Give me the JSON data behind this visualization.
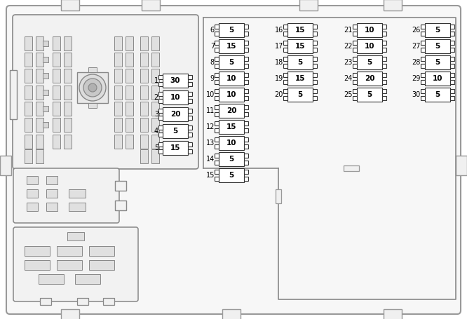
{
  "bg_color": "#ffffff",
  "board_fill": "#f0f0f0",
  "board_edge": "#888888",
  "box_fill": "#e8e8e8",
  "box_edge": "#666666",
  "fuse_fill": "#ffffff",
  "fuse_fill_gray": "#e0e0e0",
  "fuse_border": "#333333",
  "text_color": "#000000",
  "slot_fill": "#e0e0e0",
  "slot_edge": "#666666",
  "col1_fuses": [
    {
      "num": 1,
      "val": "30"
    },
    {
      "num": 2,
      "val": "10"
    },
    {
      "num": 3,
      "val": "20"
    },
    {
      "num": 4,
      "val": "5"
    },
    {
      "num": 5,
      "val": "15"
    }
  ],
  "col2_fuses": [
    {
      "num": 6,
      "val": "5"
    },
    {
      "num": 7,
      "val": "15"
    },
    {
      "num": 8,
      "val": "5"
    },
    {
      "num": 9,
      "val": "10"
    },
    {
      "num": 10,
      "val": "10"
    },
    {
      "num": 11,
      "val": "20"
    },
    {
      "num": 12,
      "val": "15"
    },
    {
      "num": 13,
      "val": "10"
    },
    {
      "num": 14,
      "val": "5"
    },
    {
      "num": 15,
      "val": "5"
    }
  ],
  "col3_fuses": [
    {
      "num": 16,
      "val": "15"
    },
    {
      "num": 17,
      "val": "15"
    },
    {
      "num": 18,
      "val": "5"
    },
    {
      "num": 19,
      "val": "15"
    },
    {
      "num": 20,
      "val": "5"
    }
  ],
  "col4_fuses": [
    {
      "num": 21,
      "val": "10"
    },
    {
      "num": 22,
      "val": "10"
    },
    {
      "num": 23,
      "val": "5"
    },
    {
      "num": 24,
      "val": "20"
    },
    {
      "num": 25,
      "val": "5"
    }
  ],
  "col5_fuses": [
    {
      "num": 26,
      "val": "5"
    },
    {
      "num": 27,
      "val": "5"
    },
    {
      "num": 28,
      "val": "5"
    },
    {
      "num": 29,
      "val": "10"
    },
    {
      "num": 30,
      "val": "5"
    }
  ]
}
